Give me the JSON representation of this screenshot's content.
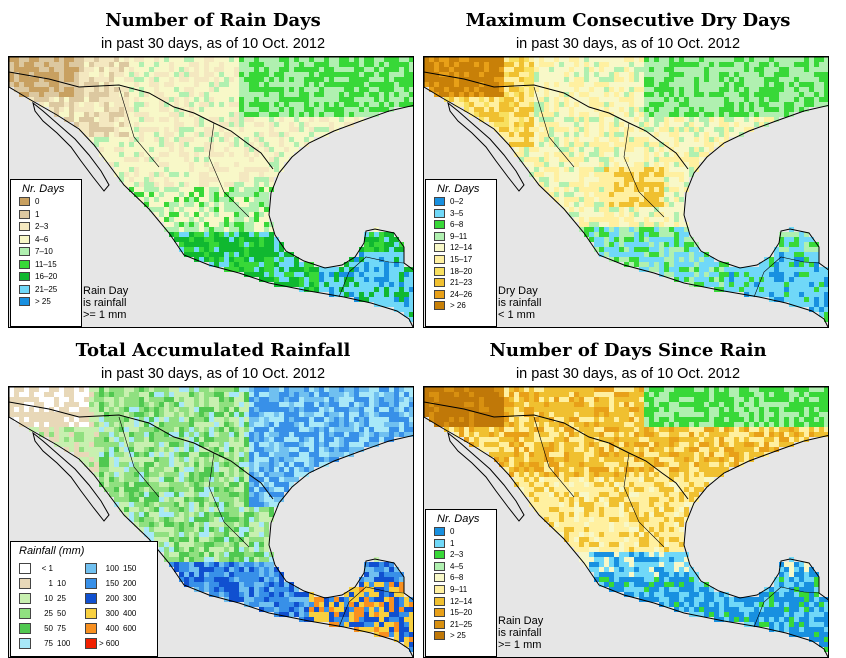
{
  "panels": [
    {
      "title": "Number of Rain Days",
      "subtitle": "in past 30 days, as of  10 Oct. 2012",
      "legend_title": "Nr. Days",
      "note": [
        "Rain Day",
        "is rainfall",
        ">= 1 mm"
      ],
      "classes": [
        {
          "label": "0",
          "color": "#c8a060"
        },
        {
          "label": "1",
          "color": "#dcc8a0"
        },
        {
          "label": "2–3",
          "color": "#f4e8c0"
        },
        {
          "label": "4–6",
          "color": "#f8f8c8"
        },
        {
          "label": "7–10",
          "color": "#b0f0b0"
        },
        {
          "label": "11–15",
          "color": "#38d838"
        },
        {
          "label": "16–20",
          "color": "#10b830"
        },
        {
          "label": "21–25",
          "color": "#70d8f8"
        },
        {
          "label": "> 25",
          "color": "#1890e0"
        }
      ]
    },
    {
      "title": "Maximum Consecutive Dry Days",
      "subtitle": "in past 30 days, as of  10 Oct. 2012",
      "legend_title": "Nr. Days",
      "note": [
        "Dry Day",
        "is rainfall",
        "< 1 mm"
      ],
      "classes": [
        {
          "label": "0–2",
          "color": "#1890e0"
        },
        {
          "label": "3–5",
          "color": "#70d8f8"
        },
        {
          "label": "6–8",
          "color": "#38d838"
        },
        {
          "label": "9–11",
          "color": "#b0f0b0"
        },
        {
          "label": "12–14",
          "color": "#f8f8c8"
        },
        {
          "label": "15–17",
          "color": "#fff0a0"
        },
        {
          "label": "18–20",
          "color": "#f8e060"
        },
        {
          "label": "21–23",
          "color": "#f0c030"
        },
        {
          "label": "24–26",
          "color": "#e8a018"
        },
        {
          "label": "> 26",
          "color": "#c88008"
        }
      ]
    },
    {
      "title": "Total Accumulated Rainfall",
      "subtitle": "in past 30 days, as of  10 Oct. 2012",
      "legend_title": "Rainfall (mm)",
      "classes": [
        {
          "lo": "< 1",
          "hi": "",
          "color": "#ffffff"
        },
        {
          "lo": "1",
          "hi": "10",
          "color": "#e8d8b8"
        },
        {
          "lo": "10",
          "hi": "25",
          "color": "#c8f0b0"
        },
        {
          "lo": "25",
          "hi": "50",
          "color": "#90e080"
        },
        {
          "lo": "50",
          "hi": "75",
          "color": "#50c850"
        },
        {
          "lo": "75",
          "hi": "100",
          "color": "#a8e8f8"
        },
        {
          "lo": "100",
          "hi": "150",
          "color": "#70c0f0"
        },
        {
          "lo": "150",
          "hi": "200",
          "color": "#3890e8"
        },
        {
          "lo": "200",
          "hi": "300",
          "color": "#1050d0"
        },
        {
          "lo": "300",
          "hi": "400",
          "color": "#f8d040"
        },
        {
          "lo": "400",
          "hi": "600",
          "color": "#f89020"
        },
        {
          "lo": "> 600",
          "hi": "",
          "color": "#f02000"
        }
      ]
    },
    {
      "title": "Number of Days Since Rain",
      "subtitle": "in past 30 days, as of  10 Oct. 2012",
      "legend_title": "Nr. Days",
      "note": [
        "Rain Day",
        "is rainfall",
        ">= 1 mm"
      ],
      "classes": [
        {
          "label": "0",
          "color": "#1890e0"
        },
        {
          "label": "1",
          "color": "#70d8f8"
        },
        {
          "label": "2–3",
          "color": "#38d838"
        },
        {
          "label": "4–5",
          "color": "#b0f0b0"
        },
        {
          "label": "6–8",
          "color": "#f8f8c8"
        },
        {
          "label": "9–11",
          "color": "#fff0a0"
        },
        {
          "label": "12–14",
          "color": "#f0c030"
        },
        {
          "label": "15–20",
          "color": "#e8a018"
        },
        {
          "label": "21–25",
          "color": "#d89010"
        },
        {
          "label": "> 25",
          "color": "#c07808"
        }
      ]
    }
  ]
}
